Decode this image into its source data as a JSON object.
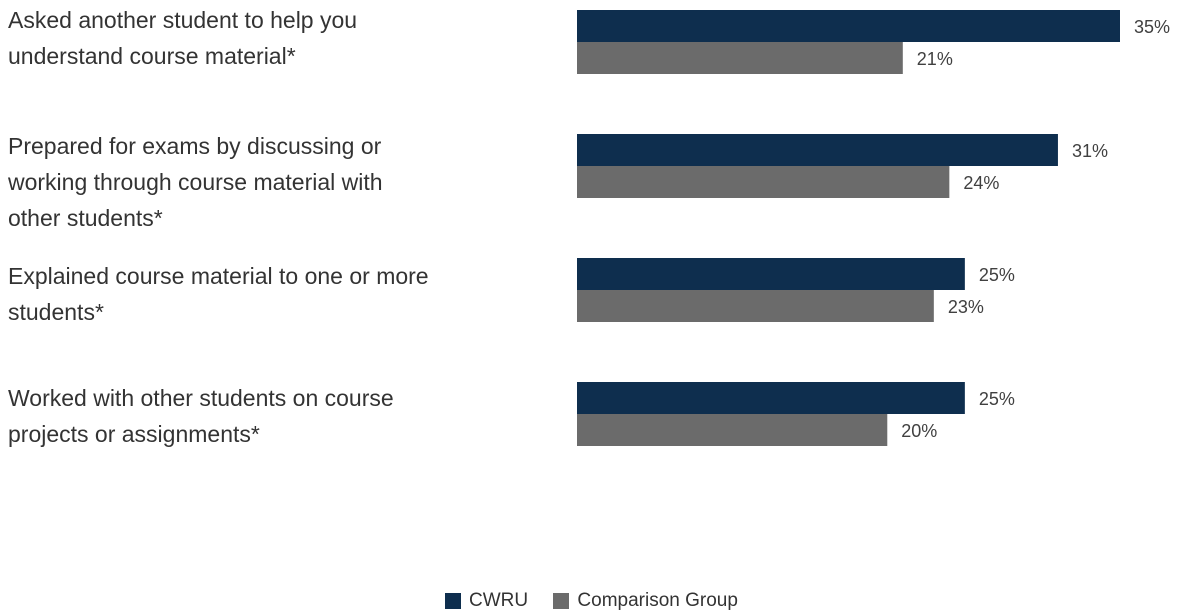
{
  "chart_data": {
    "type": "bar",
    "orientation": "horizontal",
    "categories": [
      "Asked another student to help you understand course material*",
      "Prepared for exams by discussing or working through course material with other students*",
      "Explained course material to one or more students*",
      "Worked with other students on course projects or assignments*"
    ],
    "category_lines": [
      [
        "Asked another student to help you",
        "understand course material*"
      ],
      [
        "Prepared for exams by discussing or",
        "working through course material with",
        "other students*"
      ],
      [
        "Explained course material to one or more",
        "students*"
      ],
      [
        "Worked with other students on course",
        "projects or assignments*"
      ]
    ],
    "series": [
      {
        "name": "CWRU",
        "values": [
          35,
          31,
          25,
          25
        ],
        "labels": [
          "35%",
          "31%",
          "25%",
          "25%"
        ],
        "color": "#0e2e4e"
      },
      {
        "name": "Comparison Group",
        "values": [
          21,
          24,
          23,
          20
        ],
        "labels": [
          "21%",
          "24%",
          "23%",
          "20%"
        ],
        "color": "#6b6b6b"
      }
    ],
    "xlim": [
      0,
      35
    ],
    "grid": false,
    "legend_position": "bottom"
  }
}
